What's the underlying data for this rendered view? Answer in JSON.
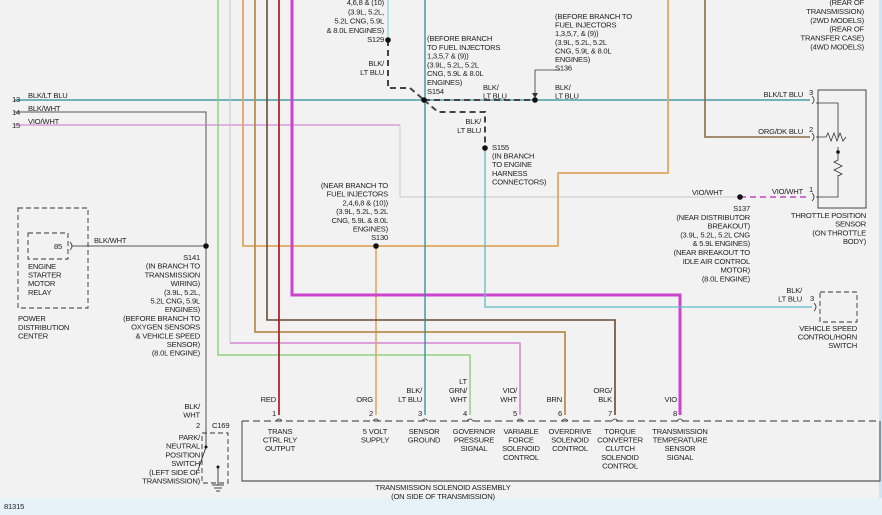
{
  "figure_id": "81315",
  "colors": {
    "background": "#f2f2f2",
    "blk_lt_blu": "#2a8c96",
    "lt_blu": "#8fd8e0",
    "blk_wht": "#555555",
    "vio_wht": "#d070d0",
    "lt_grn_wht": "#7ccf6e",
    "org": "#e0a860",
    "tan": "#b89050",
    "dk_brn": "#6a4a30",
    "red": "#b02828",
    "vio": "#cc44cc",
    "gray": "#c8c8c8"
  },
  "left_wires": [
    {
      "num": "13",
      "label": "BLK/LT BLU"
    },
    {
      "num": "14",
      "label": "BLK/WHT"
    },
    {
      "num": "15",
      "label": "VIO/WHT"
    }
  ],
  "splices": {
    "s129": [
      "4,6,8 & (10)",
      "(3.9L, 5.2L,",
      "5.2L CNG, 5.9L",
      "& 8.0L ENGINES)",
      "S129"
    ],
    "s154": [
      "(BEFORE BRANCH",
      "TO FUEL INJECTORS",
      "1,3,5,7 & (9))",
      "(3.9L, 5.2L, 5.2L",
      "CNG, 5.9L & 8.0L",
      "ENGINES)",
      "S154"
    ],
    "s136": [
      "(BEFORE BRANCH TO",
      "FUEL INJECTORS",
      "1,3,5,7, & (9))",
      "(3.9L, 5.2L, 5.2L",
      "CNG, 5.9L & 8.0L",
      "ENGINES)",
      "S136"
    ],
    "s155": [
      "S155",
      "(IN BRANCH",
      "TO ENGINE",
      "HARNESS",
      "CONNECTORS)"
    ],
    "s130": [
      "(NEAR BRANCH TO",
      "FUEL INJECTORS",
      "2,4,6,8 & (10))",
      "(3.9L, 5.2L, 5.2L",
      "CNG, 5.9L & 8.0L",
      "ENGINES)",
      "S130"
    ],
    "s141": [
      "S141",
      "(IN BRANCH TO",
      "TRANSMISSION",
      "WIRING)",
      "(3.9L, 5.2L,",
      "5.2L CNG, 5.9L",
      "ENGINES)",
      "(BEFORE BRANCH TO",
      "OXYGEN SENSORS",
      "& VEHICLE SPEED",
      "SENSOR)",
      "(8.0L ENGINE)"
    ],
    "s137": [
      "S137",
      "(NEAR DISTRIBUTOR",
      "BREAKOUT)",
      "(3.9L, 5.2L, 5.2L CNG",
      "& 5.9L ENGINES)",
      "(NEAR BREAKOUT TO",
      "IDLE AIR CONTROL",
      "MOTOR)",
      "(8.0L ENGINE)"
    ]
  },
  "wire_labels": {
    "blk_lt_blu_a": [
      "BLK/",
      "LT BLU"
    ],
    "blk_lt_blu_b": [
      "BLK/",
      "LT BLU"
    ],
    "blk_lt_blu_c": [
      "BLK/",
      "LT BLU"
    ],
    "blk_lt_blu_d": [
      "BLK/",
      "LT BLU"
    ],
    "pdc_blk_wht": [
      "BLK/WHT"
    ],
    "vio_wht_s137": [
      "VIO/WHT"
    ]
  },
  "top_right_note": [
    "(REAR OF",
    "TRANSMISSION)",
    "(2WD MODELS)",
    "(REAR OF",
    "TRANSFER CASE)",
    "(4WD MODELS)"
  ],
  "tps": {
    "name": [
      "THROTTLE POSITION",
      "SENSOR",
      "(ON THROTTLE",
      "BODY)"
    ],
    "pins": [
      {
        "num": "3",
        "wire": "BLK/LT BLU"
      },
      {
        "num": "2",
        "wire": "ORG/DK BLU"
      },
      {
        "num": "1",
        "wire": "VIO/WHT"
      }
    ]
  },
  "vss": {
    "name": [
      "VEHICLE SPEED",
      "CONTROL/HORN",
      "SWITCH"
    ],
    "pin": "3",
    "wire": [
      "BLK/",
      "LT BLU"
    ]
  },
  "pdc": {
    "relay": [
      "ENGINE",
      "STARTER",
      "MOTOR",
      "RELAY"
    ],
    "pin": "85",
    "name": [
      "POWER",
      "DISTRIBUTION",
      "CENTER"
    ]
  },
  "pnp_switch": {
    "wire": [
      "BLK/",
      "WHT"
    ],
    "pin": "2",
    "connector": "C169",
    "name": [
      "PARK/",
      "NEUTRAL",
      "POSITION",
      "SWITCH",
      "(LEFT SIDE OF",
      "TRANSMISSION)"
    ]
  },
  "solenoid_assembly": {
    "name": [
      "TRANSMISSION SOLENOID ASSEMBLY",
      "(ON SIDE OF TRANSMISSION)"
    ],
    "pins": [
      {
        "num": "1",
        "wire": [
          "RED"
        ],
        "func": [
          "TRANS",
          "CTRL RLY",
          "OUTPUT"
        ]
      },
      {
        "num": "2",
        "wire": [
          "ORG"
        ],
        "func": [
          "5 VOLT",
          "SUPPLY"
        ]
      },
      {
        "num": "3",
        "wire": [
          "BLK/",
          "LT BLU"
        ],
        "func": [
          "SENSOR",
          "GROUND"
        ]
      },
      {
        "num": "4",
        "wire": [
          "LT",
          "GRN/",
          "WHT"
        ],
        "func": [
          "GOVERNOR",
          "PRESSURE",
          "SIGNAL"
        ]
      },
      {
        "num": "5",
        "wire": [
          "VIO/",
          "WHT"
        ],
        "func": [
          "VARIABLE",
          "FORCE",
          "SOLENOID",
          "CONTROL"
        ]
      },
      {
        "num": "6",
        "wire": [
          "BRN"
        ],
        "func": [
          "OVERDRIVE",
          "SOLENOID",
          "CONTROL"
        ]
      },
      {
        "num": "7",
        "wire": [
          "ORG/",
          "BLK"
        ],
        "func": [
          "TORQUE",
          "CONVERTER",
          "CLUTCH",
          "SOLENOID",
          "CONTROL"
        ]
      },
      {
        "num": "8",
        "wire": [
          "VIO"
        ],
        "func": [
          "TRANSMISSION",
          "TEMPERATURE",
          "SENSOR",
          "SIGNAL"
        ]
      }
    ]
  }
}
